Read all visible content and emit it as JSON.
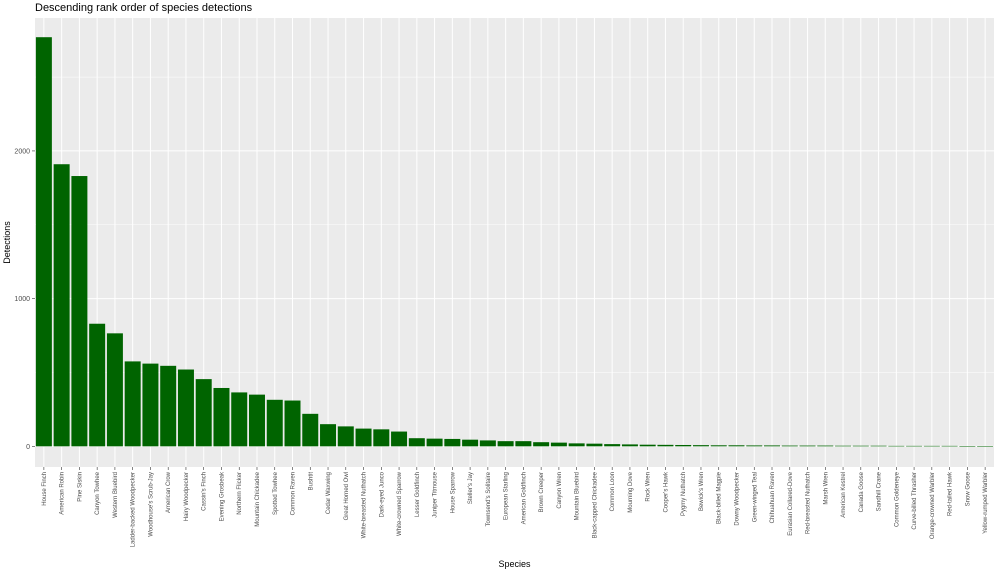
{
  "chart_data": {
    "type": "bar",
    "title": "Descending rank order of species detections",
    "xlabel": "Species",
    "ylabel": "Detections",
    "ylim": [
      -140,
      2900
    ],
    "yticks": [
      0,
      1000,
      2000
    ],
    "grid": true,
    "bar_color": "#006400",
    "panel_color": "#ebebeb",
    "categories": [
      "House Finch",
      "American Robin",
      "Pine Siskin",
      "Canyon Towhee",
      "Western Bluebird",
      "Ladder-backed Woodpecker",
      "Woodhouse's Scrub-Jay",
      "American Crow",
      "Hairy Woodpecker",
      "Cassin's Finch",
      "Evening Grosbeak",
      "Northern Flicker",
      "Mountain Chickadee",
      "Spotted Towhee",
      "Common Raven",
      "Bushtit",
      "Cedar Waxwing",
      "Great Horned Owl",
      "White-breasted Nuthatch",
      "Dark-eyed Junco",
      "White-crowned Sparrow",
      "Lesser Goldfinch",
      "Juniper Titmouse",
      "House Sparrow",
      "Steller's Jay",
      "Townsend's Solitaire",
      "European Starling",
      "American Goldfinch",
      "Brown Creeper",
      "Canyon Wren",
      "Mountain Bluebird",
      "Black-capped Chickadee",
      "Common Loon",
      "Mourning Dove",
      "Rock Wren",
      "Cooper's Hawk",
      "Pygmy Nuthatch",
      "Bewick's Wren",
      "Black-billed Magpie",
      "Downy Woodpecker",
      "Green-winged Teal",
      "Chihuahuan Raven",
      "Eurasian Collared-Dove",
      "Red-breasted Nuthatch",
      "Marsh Wren",
      "American Kestrel",
      "Canada Goose",
      "Sandhill Crane",
      "Common Goldeneye",
      "Curve-billed Thrasher",
      "Orange-crowned Warbler",
      "Red-tailed Hawk",
      "Snow Goose",
      "Yellow-rumped Warbler"
    ],
    "values": [
      2770,
      1910,
      1830,
      830,
      765,
      575,
      560,
      545,
      520,
      455,
      395,
      365,
      350,
      315,
      310,
      220,
      150,
      135,
      120,
      115,
      100,
      55,
      52,
      50,
      45,
      40,
      35,
      35,
      28,
      25,
      20,
      18,
      15,
      13,
      11,
      10,
      9,
      8,
      7,
      7,
      6,
      6,
      5,
      5,
      5,
      4,
      4,
      4,
      3,
      3,
      3,
      3,
      2,
      2
    ]
  }
}
